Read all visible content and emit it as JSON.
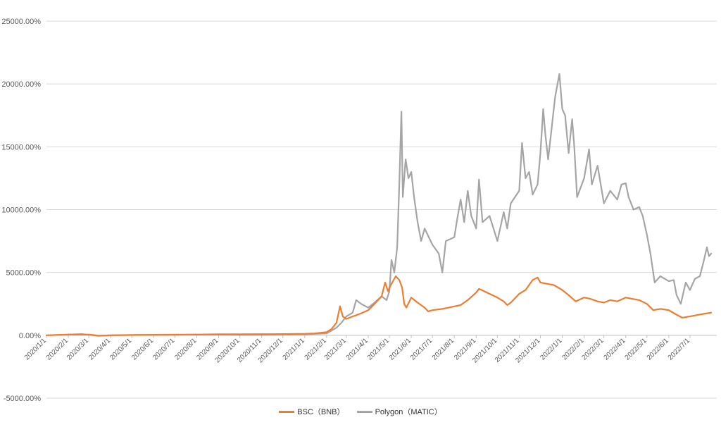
{
  "chart_data": {
    "type": "line",
    "ylim": [
      -5000,
      25000
    ],
    "y_ticks": [
      "-5000.00%",
      "0.00%",
      "5000.00%",
      "10000.00%",
      "15000.00%",
      "20000.00%",
      "25000.00%"
    ],
    "y_tick_values": [
      -5000,
      0,
      5000,
      10000,
      15000,
      20000,
      25000
    ],
    "x_ticks": [
      "2020/1/1",
      "2020/2/1",
      "2020/3/1",
      "2020/4/1",
      "2020/5/1",
      "2020/6/1",
      "2020/7/1",
      "2020/8/1",
      "2020/9/1",
      "2020/10/1",
      "2020/11/1",
      "2020/12/1",
      "2021/1/1",
      "2021/2/1",
      "2021/3/1",
      "2021/4/1",
      "2021/5/1",
      "2021/6/1",
      "2021/7/1",
      "2021/8/1",
      "2021/9/1",
      "2021/10/1",
      "2021/11/1",
      "2021/12/1",
      "2022/1/1",
      "2022/2/1",
      "2022/3/1",
      "2022/4/1",
      "2022/5/1",
      "2022/6/1",
      "2022/7/1"
    ],
    "x_range": [
      "2020-01-01",
      "2022-07-31"
    ],
    "grid": true,
    "legend_position": "bottom",
    "series": [
      {
        "name": "BSC（BNB）",
        "color": "#ED7D31",
        "points": [
          [
            "2020-01-01",
            0
          ],
          [
            "2020-02-01",
            50
          ],
          [
            "2020-03-01",
            60
          ],
          [
            "2020-03-15",
            -30
          ],
          [
            "2020-04-01",
            0
          ],
          [
            "2020-05-01",
            20
          ],
          [
            "2020-06-01",
            30
          ],
          [
            "2020-07-01",
            40
          ],
          [
            "2020-08-01",
            60
          ],
          [
            "2020-09-01",
            80
          ],
          [
            "2020-10-01",
            80
          ],
          [
            "2020-11-01",
            90
          ],
          [
            "2020-12-01",
            100
          ],
          [
            "2021-01-01",
            120
          ],
          [
            "2021-01-15",
            150
          ],
          [
            "2021-02-01",
            250
          ],
          [
            "2021-02-08",
            500
          ],
          [
            "2021-02-15",
            1000
          ],
          [
            "2021-02-20",
            2300
          ],
          [
            "2021-02-24",
            1500
          ],
          [
            "2021-03-01",
            1300
          ],
          [
            "2021-03-10",
            1500
          ],
          [
            "2021-03-20",
            1700
          ],
          [
            "2021-04-01",
            2000
          ],
          [
            "2021-04-10",
            2500
          ],
          [
            "2021-04-20",
            3100
          ],
          [
            "2021-04-25",
            4200
          ],
          [
            "2021-04-29",
            3500
          ],
          [
            "2021-05-03",
            4000
          ],
          [
            "2021-05-10",
            4700
          ],
          [
            "2021-05-15",
            4400
          ],
          [
            "2021-05-19",
            3800
          ],
          [
            "2021-05-22",
            2500
          ],
          [
            "2021-05-25",
            2200
          ],
          [
            "2021-06-01",
            3000
          ],
          [
            "2021-06-10",
            2600
          ],
          [
            "2021-06-20",
            2200
          ],
          [
            "2021-06-25",
            1900
          ],
          [
            "2021-07-01",
            2000
          ],
          [
            "2021-07-15",
            2100
          ],
          [
            "2021-08-01",
            2300
          ],
          [
            "2021-08-10",
            2400
          ],
          [
            "2021-08-20",
            2800
          ],
          [
            "2021-09-01",
            3400
          ],
          [
            "2021-09-05",
            3700
          ],
          [
            "2021-09-20",
            3300
          ],
          [
            "2021-10-01",
            3000
          ],
          [
            "2021-10-10",
            2700
          ],
          [
            "2021-10-15",
            2400
          ],
          [
            "2021-10-20",
            2600
          ],
          [
            "2021-11-01",
            3300
          ],
          [
            "2021-11-10",
            3600
          ],
          [
            "2021-11-20",
            4400
          ],
          [
            "2021-11-27",
            4600
          ],
          [
            "2021-12-01",
            4200
          ],
          [
            "2021-12-10",
            4100
          ],
          [
            "2021-12-20",
            4000
          ],
          [
            "2022-01-01",
            3600
          ],
          [
            "2022-01-10",
            3200
          ],
          [
            "2022-01-20",
            2700
          ],
          [
            "2022-02-01",
            3000
          ],
          [
            "2022-02-10",
            2900
          ],
          [
            "2022-02-20",
            2700
          ],
          [
            "2022-03-01",
            2600
          ],
          [
            "2022-03-10",
            2800
          ],
          [
            "2022-03-20",
            2700
          ],
          [
            "2022-04-01",
            3000
          ],
          [
            "2022-04-10",
            2900
          ],
          [
            "2022-04-20",
            2800
          ],
          [
            "2022-05-01",
            2500
          ],
          [
            "2022-05-10",
            2000
          ],
          [
            "2022-05-20",
            2100
          ],
          [
            "2022-06-01",
            2000
          ],
          [
            "2022-06-10",
            1700
          ],
          [
            "2022-06-20",
            1400
          ],
          [
            "2022-07-01",
            1500
          ],
          [
            "2022-07-10",
            1600
          ],
          [
            "2022-07-20",
            1700
          ],
          [
            "2022-07-31",
            1800
          ]
        ]
      },
      {
        "name": "Polygon（MATIC）",
        "color": "#A5A5A5",
        "points": [
          [
            "2020-01-01",
            0
          ],
          [
            "2020-02-01",
            50
          ],
          [
            "2020-02-20",
            100
          ],
          [
            "2020-03-15",
            -50
          ],
          [
            "2020-04-01",
            0
          ],
          [
            "2020-05-01",
            30
          ],
          [
            "2020-06-01",
            40
          ],
          [
            "2020-07-01",
            50
          ],
          [
            "2020-08-01",
            60
          ],
          [
            "2020-09-01",
            50
          ],
          [
            "2020-10-01",
            30
          ],
          [
            "2020-11-01",
            30
          ],
          [
            "2020-12-01",
            50
          ],
          [
            "2021-01-01",
            80
          ],
          [
            "2021-02-01",
            150
          ],
          [
            "2021-02-15",
            600
          ],
          [
            "2021-02-22",
            1000
          ],
          [
            "2021-03-01",
            1500
          ],
          [
            "2021-03-10",
            1800
          ],
          [
            "2021-03-15",
            2800
          ],
          [
            "2021-03-22",
            2500
          ],
          [
            "2021-04-01",
            2200
          ],
          [
            "2021-04-10",
            2600
          ],
          [
            "2021-04-20",
            3100
          ],
          [
            "2021-04-27",
            2800
          ],
          [
            "2021-05-01",
            3500
          ],
          [
            "2021-05-04",
            6000
          ],
          [
            "2021-05-08",
            5000
          ],
          [
            "2021-05-12",
            7000
          ],
          [
            "2021-05-15",
            12000
          ],
          [
            "2021-05-18",
            17800
          ],
          [
            "2021-05-20",
            11000
          ],
          [
            "2021-05-24",
            14000
          ],
          [
            "2021-05-28",
            12500
          ],
          [
            "2021-06-01",
            13000
          ],
          [
            "2021-06-05",
            11000
          ],
          [
            "2021-06-10",
            9000
          ],
          [
            "2021-06-15",
            7500
          ],
          [
            "2021-06-20",
            8500
          ],
          [
            "2021-07-01",
            7200
          ],
          [
            "2021-07-10",
            6500
          ],
          [
            "2021-07-15",
            5000
          ],
          [
            "2021-07-20",
            7500
          ],
          [
            "2021-08-01",
            7800
          ],
          [
            "2021-08-05",
            9200
          ],
          [
            "2021-08-10",
            10800
          ],
          [
            "2021-08-15",
            9000
          ],
          [
            "2021-08-20",
            11500
          ],
          [
            "2021-08-25",
            9500
          ],
          [
            "2021-09-01",
            8500
          ],
          [
            "2021-09-05",
            12400
          ],
          [
            "2021-09-10",
            9000
          ],
          [
            "2021-09-20",
            9500
          ],
          [
            "2021-10-01",
            7500
          ],
          [
            "2021-10-10",
            9800
          ],
          [
            "2021-10-15",
            8500
          ],
          [
            "2021-10-20",
            10500
          ],
          [
            "2021-11-01",
            11500
          ],
          [
            "2021-11-05",
            15300
          ],
          [
            "2021-11-10",
            12500
          ],
          [
            "2021-11-15",
            13000
          ],
          [
            "2021-11-20",
            11200
          ],
          [
            "2021-11-27",
            12000
          ],
          [
            "2021-12-01",
            14500
          ],
          [
            "2021-12-05",
            18000
          ],
          [
            "2021-12-08",
            16000
          ],
          [
            "2021-12-12",
            14000
          ],
          [
            "2021-12-17",
            16500
          ],
          [
            "2021-12-22",
            19000
          ],
          [
            "2021-12-28",
            20800
          ],
          [
            "2022-01-01",
            18000
          ],
          [
            "2022-01-05",
            17500
          ],
          [
            "2022-01-10",
            14500
          ],
          [
            "2022-01-15",
            17200
          ],
          [
            "2022-01-18",
            15000
          ],
          [
            "2022-01-22",
            11000
          ],
          [
            "2022-02-01",
            12500
          ],
          [
            "2022-02-08",
            14800
          ],
          [
            "2022-02-12",
            12000
          ],
          [
            "2022-02-20",
            13500
          ],
          [
            "2022-03-01",
            10500
          ],
          [
            "2022-03-10",
            11500
          ],
          [
            "2022-03-20",
            10800
          ],
          [
            "2022-03-26",
            12000
          ],
          [
            "2022-04-01",
            12100
          ],
          [
            "2022-04-05",
            11000
          ],
          [
            "2022-04-12",
            10000
          ],
          [
            "2022-04-20",
            10200
          ],
          [
            "2022-04-25",
            9500
          ],
          [
            "2022-05-01",
            8000
          ],
          [
            "2022-05-06",
            6500
          ],
          [
            "2022-05-12",
            4200
          ],
          [
            "2022-05-20",
            4700
          ],
          [
            "2022-06-01",
            4300
          ],
          [
            "2022-06-08",
            4400
          ],
          [
            "2022-06-12",
            3200
          ],
          [
            "2022-06-18",
            2500
          ],
          [
            "2022-06-25",
            4200
          ],
          [
            "2022-07-01",
            3600
          ],
          [
            "2022-07-08",
            4500
          ],
          [
            "2022-07-15",
            4700
          ],
          [
            "2022-07-20",
            5800
          ],
          [
            "2022-07-25",
            7000
          ],
          [
            "2022-07-28",
            6300
          ],
          [
            "2022-07-31",
            6500
          ]
        ]
      }
    ]
  }
}
